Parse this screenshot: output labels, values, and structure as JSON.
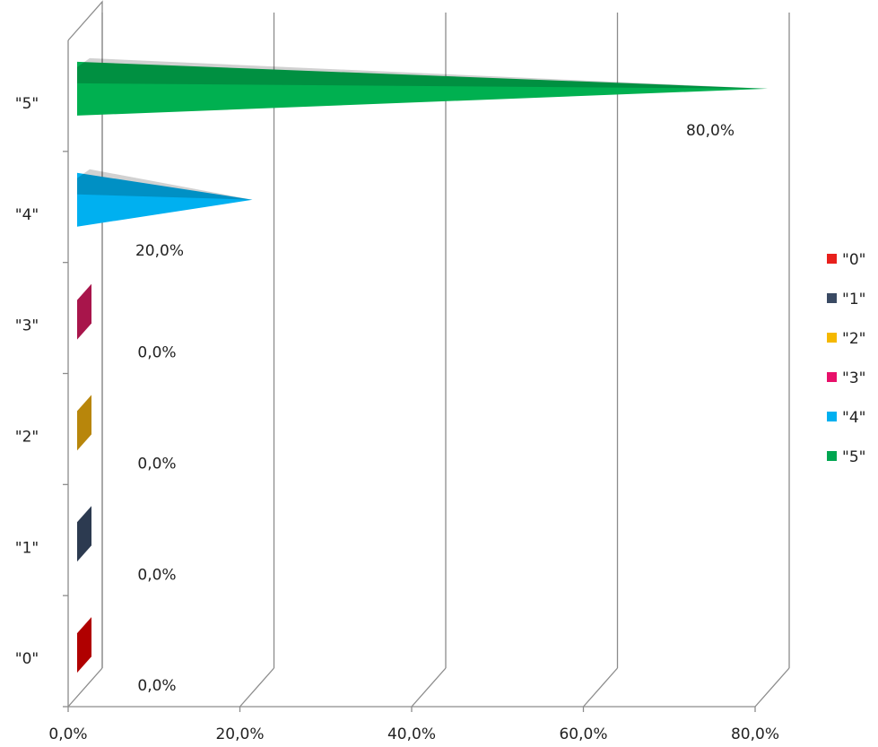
{
  "chart_data": {
    "type": "bar",
    "orientation": "horizontal",
    "style": "3d-cone",
    "categories": [
      "\"0\"",
      "\"1\"",
      "\"2\"",
      "\"3\"",
      "\"4\"",
      "\"5\""
    ],
    "values": [
      0.0,
      0.0,
      0.0,
      0.0,
      20.0,
      80.0
    ],
    "data_labels": [
      "0,0%",
      "0,0%",
      "0,0%",
      "0,0%",
      "20,0%",
      "80,0%"
    ],
    "xlim": [
      0,
      80
    ],
    "x_ticks": [
      0,
      20,
      40,
      60,
      80
    ],
    "x_tick_labels": [
      "0,0%",
      "20,0%",
      "40,0%",
      "60,0%",
      "80,0%"
    ],
    "grid": true,
    "legend": {
      "placement": "right",
      "entries": [
        {
          "label": "\"0\"",
          "color": "#e8201c"
        },
        {
          "label": "\"1\"",
          "color": "#3a4a63"
        },
        {
          "label": "\"2\"",
          "color": "#f5b800"
        },
        {
          "label": "\"3\"",
          "color": "#e8106a"
        },
        {
          "label": "\"4\"",
          "color": "#00b0f0"
        },
        {
          "label": "\"5\"",
          "color": "#00a651"
        }
      ]
    },
    "bar_colors": {
      "\"0\"": "#b00000",
      "\"1\"": "#2c3a50",
      "\"2\"": "#b8860b",
      "\"3\"": "#a8154b",
      "\"4\"": "#00b0f0",
      "\"5\"": "#00b050"
    }
  }
}
